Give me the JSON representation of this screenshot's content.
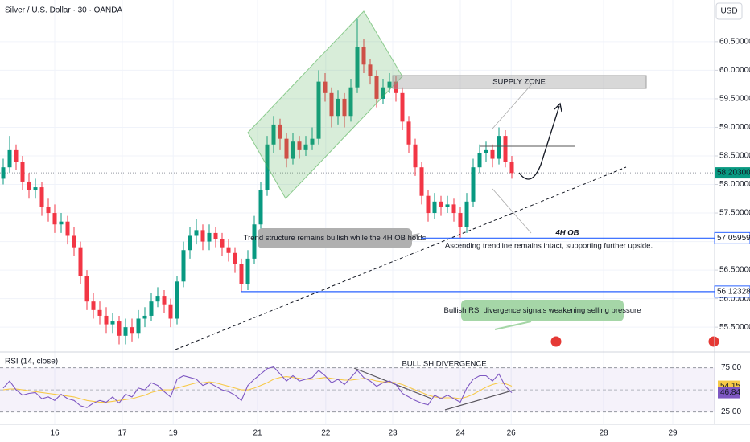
{
  "chart_data": {
    "type": "candlestick",
    "title": "Silver / U.S. Dollar · 30 · OANDA",
    "currency": "USD",
    "up_color": "#089981",
    "down_color": "#f23645",
    "open": [
      58.1,
      58.3,
      58.6,
      58.4,
      58.05,
      57.9,
      57.95,
      57.6,
      57.5,
      57.3,
      57.35,
      57.1,
      56.9,
      56.4,
      55.95,
      55.8,
      55.7,
      55.55,
      55.6,
      55.35,
      55.5,
      55.4,
      55.65,
      55.7,
      55.95,
      56.05,
      55.9,
      55.65,
      56.3,
      56.85,
      57.1,
      57.2,
      57.0,
      57.15,
      57.05,
      56.9,
      56.8,
      56.6,
      56.25,
      56.7,
      57.3,
      57.9,
      58.7,
      59.05,
      58.8,
      58.45,
      58.75,
      58.6,
      58.7,
      58.8,
      59.8,
      59.6,
      59.2,
      59.5,
      59.2,
      59.7,
      60.4,
      60.1,
      59.9,
      59.5,
      59.7,
      59.8,
      59.6,
      59.1,
      58.7,
      58.3,
      57.8,
      57.5,
      57.7,
      57.6,
      57.65,
      57.5,
      57.25,
      57.7,
      58.3,
      58.55,
      58.6,
      58.45,
      58.85,
      58.4
    ],
    "high": [
      58.45,
      58.85,
      58.7,
      58.5,
      58.2,
      58.1,
      58.05,
      57.75,
      57.65,
      57.5,
      57.45,
      57.25,
      57.0,
      56.5,
      56.1,
      55.95,
      55.85,
      55.75,
      55.7,
      55.65,
      55.65,
      55.8,
      55.85,
      56.1,
      56.2,
      56.15,
      56.0,
      56.4,
      57.0,
      57.25,
      57.4,
      57.3,
      57.3,
      57.25,
      57.15,
      57.05,
      56.9,
      56.7,
      56.85,
      57.45,
      58.05,
      58.85,
      59.2,
      59.15,
      58.9,
      58.9,
      58.85,
      58.85,
      59.0,
      60.0,
      59.95,
      59.7,
      59.65,
      59.6,
      59.85,
      60.9,
      60.55,
      60.2,
      60.0,
      59.85,
      59.95,
      59.9,
      59.7,
      59.2,
      58.8,
      58.4,
      57.9,
      57.85,
      57.8,
      57.8,
      57.75,
      57.6,
      57.85,
      58.45,
      58.7,
      58.75,
      58.7,
      59.0,
      58.95,
      58.5
    ],
    "low": [
      58.0,
      58.2,
      58.25,
      57.9,
      57.75,
      57.75,
      57.45,
      57.35,
      57.15,
      57.15,
      56.95,
      56.75,
      56.25,
      55.8,
      55.65,
      55.55,
      55.4,
      55.4,
      55.2,
      55.2,
      55.25,
      55.3,
      55.5,
      55.6,
      55.85,
      55.75,
      55.5,
      55.55,
      56.2,
      56.7,
      56.95,
      56.85,
      56.85,
      56.9,
      56.75,
      56.65,
      56.45,
      56.12,
      56.15,
      56.6,
      57.2,
      57.8,
      58.55,
      58.6,
      58.3,
      58.35,
      58.45,
      58.5,
      58.6,
      58.7,
      59.45,
      59.0,
      59.05,
      59.0,
      59.1,
      59.6,
      59.95,
      59.75,
      59.35,
      59.4,
      59.6,
      59.45,
      58.95,
      58.55,
      58.15,
      57.65,
      57.35,
      57.4,
      57.45,
      57.5,
      57.35,
      57.06,
      57.15,
      57.6,
      58.2,
      58.4,
      58.3,
      58.35,
      58.3,
      58.1
    ],
    "close": [
      58.3,
      58.6,
      58.4,
      58.05,
      57.9,
      57.95,
      57.6,
      57.5,
      57.3,
      57.35,
      57.1,
      56.9,
      56.4,
      55.95,
      55.8,
      55.7,
      55.55,
      55.6,
      55.35,
      55.5,
      55.4,
      55.65,
      55.7,
      55.95,
      56.05,
      55.9,
      55.65,
      56.3,
      56.85,
      57.1,
      57.2,
      57.0,
      57.15,
      57.05,
      56.9,
      56.8,
      56.6,
      56.25,
      56.7,
      57.3,
      57.9,
      58.7,
      59.05,
      58.8,
      58.45,
      58.75,
      58.6,
      58.7,
      58.8,
      59.8,
      59.6,
      59.2,
      59.5,
      59.2,
      59.7,
      60.4,
      60.1,
      59.9,
      59.5,
      59.7,
      59.8,
      59.6,
      59.1,
      58.7,
      58.3,
      57.8,
      57.5,
      57.7,
      57.6,
      57.65,
      57.5,
      57.25,
      57.7,
      58.3,
      58.55,
      58.6,
      58.45,
      58.85,
      58.4,
      58.2
    ],
    "xlim": [
      -0.5,
      110.5
    ],
    "xticks": [
      {
        "value": 8,
        "label": "16"
      },
      {
        "value": 18.5,
        "label": "17"
      },
      {
        "value": 26.4,
        "label": "19"
      },
      {
        "value": 39.5,
        "label": "21"
      },
      {
        "value": 50.1,
        "label": "22"
      },
      {
        "value": 60.5,
        "label": "23"
      },
      {
        "value": 71,
        "label": "24"
      },
      {
        "value": 78.9,
        "label": "26"
      },
      {
        "value": 93.25,
        "label": "28"
      },
      {
        "value": 104,
        "label": "29"
      }
    ],
    "ylim": [
      55.08,
      61.23
    ],
    "yticks": [
      {
        "value": 60.5,
        "label": "60.50000"
      },
      {
        "value": 60,
        "label": "60.00000"
      },
      {
        "value": 59.5,
        "label": "59.50000"
      },
      {
        "value": 59,
        "label": "59.00000"
      },
      {
        "value": 58.5,
        "label": "58.50000"
      },
      {
        "value": 58,
        "label": "58.00000"
      },
      {
        "value": 57.5,
        "label": "57.50000"
      },
      {
        "value": 57,
        "label": "57.00000"
      },
      {
        "value": 56.5,
        "label": "56.50000"
      },
      {
        "value": 56,
        "label": "56.00000"
      },
      {
        "value": 55.5,
        "label": "55.50000"
      }
    ],
    "last_price": {
      "value": 58.203,
      "label": "58.20300",
      "color": "#089981"
    },
    "levels": [
      {
        "value": 57.05959,
        "label": "57.05959",
        "color": "#2962ff"
      },
      {
        "value": 56.12328,
        "label": "56.12328",
        "color": "#2962ff"
      }
    ],
    "annotations": {
      "supply_zone": "SUPPLY ZONE",
      "ob": "4H OB",
      "trendline": "Ascending trendline remains intact, supporting further upside.",
      "structure": "Trend structure remains bullish while the 4H OB holds",
      "rsi_note": "Bullish RSI divergence signals weakening selling pressure",
      "divergence": "BULLISH DIVERGENCE"
    },
    "rsi": {
      "title": "RSI (14, close)",
      "color": "#7e57c2",
      "ma_color": "#f7c948",
      "ylim": [
        11,
        91
      ],
      "yticks": [
        {
          "value": 75,
          "label": "75.00"
        },
        {
          "value": 25,
          "label": "25.00"
        }
      ],
      "values": [
        52,
        60,
        50,
        44,
        46,
        47,
        40,
        42,
        38,
        45,
        40,
        38,
        32,
        30,
        35,
        38,
        36,
        42,
        35,
        45,
        42,
        52,
        50,
        58,
        55,
        48,
        42,
        62,
        66,
        64,
        62,
        55,
        58,
        54,
        50,
        48,
        44,
        38,
        55,
        62,
        68,
        74,
        76,
        68,
        60,
        66,
        60,
        62,
        64,
        72,
        66,
        58,
        62,
        56,
        64,
        72,
        64,
        60,
        54,
        58,
        60,
        56,
        46,
        42,
        38,
        35,
        33,
        44,
        40,
        44,
        40,
        36,
        52,
        62,
        66,
        66,
        60,
        68,
        54,
        46.84
      ],
      "ma": [
        50,
        51,
        51,
        50,
        49,
        48,
        47,
        46,
        45,
        44,
        43,
        42,
        40,
        38,
        37,
        36,
        36,
        37,
        38,
        39,
        40,
        42,
        44,
        47,
        49,
        50,
        50,
        52,
        54,
        56,
        58,
        58,
        59,
        58,
        56,
        54,
        52,
        50,
        50,
        52,
        55,
        58,
        62,
        64,
        65,
        64,
        63,
        62,
        62,
        63,
        64,
        63,
        62,
        61,
        61,
        62,
        63,
        62,
        60,
        59,
        59,
        58,
        56,
        53,
        50,
        47,
        44,
        42,
        41,
        41,
        41,
        40,
        42,
        45,
        49,
        53,
        56,
        58,
        57,
        54.15
      ],
      "value_label": "46.84",
      "ma_label": "54.15"
    }
  }
}
